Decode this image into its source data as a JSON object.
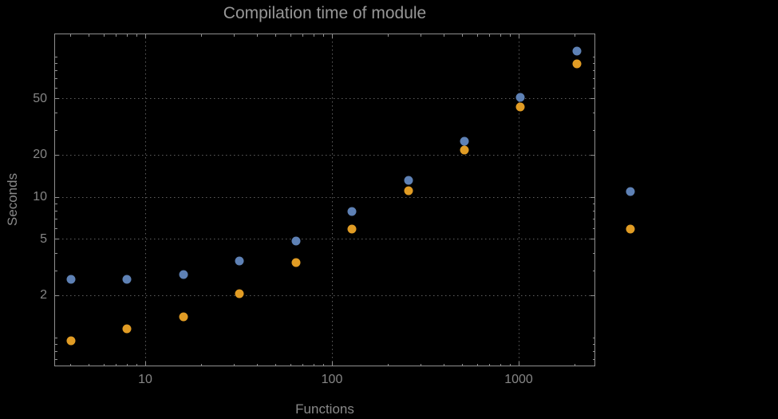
{
  "colors": {
    "background": "#000000",
    "frame": "#8f8f8f",
    "grid": "#5e5e5e",
    "title_text": "#979797",
    "label_text": "#8a8a8a",
    "tick_text": "#868686",
    "series1": "#5e81b5",
    "series2": "#e19c24"
  },
  "chart_data": {
    "type": "scatter",
    "title": "Compilation time of module",
    "xlabel": "Functions",
    "ylabel": "Seconds",
    "x_scale": "log",
    "y_scale": "log",
    "xlim": [
      3.3,
      2600
    ],
    "ylim": [
      0.6,
      146
    ],
    "grid": true,
    "grid_style": "dotted",
    "legend_position": "right-outside",
    "x": [
      4,
      8,
      16,
      32,
      64,
      128,
      256,
      512,
      1024,
      2048
    ],
    "series": [
      {
        "name": "series-1-blue",
        "color": "#5e81b5",
        "values": [
          2.6,
          2.6,
          2.8,
          3.5,
          4.9,
          7.9,
          13.2,
          25,
          51,
          110
        ]
      },
      {
        "name": "series-2-orange",
        "color": "#e19c24",
        "values": [
          0.95,
          1.15,
          1.4,
          2.05,
          3.4,
          5.9,
          11.1,
          21.5,
          44,
          89
        ]
      }
    ],
    "x_ticks": [
      10,
      100,
      1000
    ],
    "x_tick_labels": [
      "10",
      "100",
      "1000"
    ],
    "y_ticks": [
      2,
      5,
      10,
      20,
      50
    ],
    "y_tick_labels": [
      "2",
      "5",
      "10",
      "20",
      "50"
    ],
    "x_gridlines": [
      10,
      100,
      1000
    ],
    "y_gridlines": [
      2,
      5,
      10,
      20,
      50
    ]
  },
  "legend": {
    "markers": [
      {
        "name": "series-1-blue",
        "color": "#5e81b5",
        "label": ""
      },
      {
        "name": "series-2-orange",
        "color": "#e19c24",
        "label": ""
      }
    ]
  }
}
